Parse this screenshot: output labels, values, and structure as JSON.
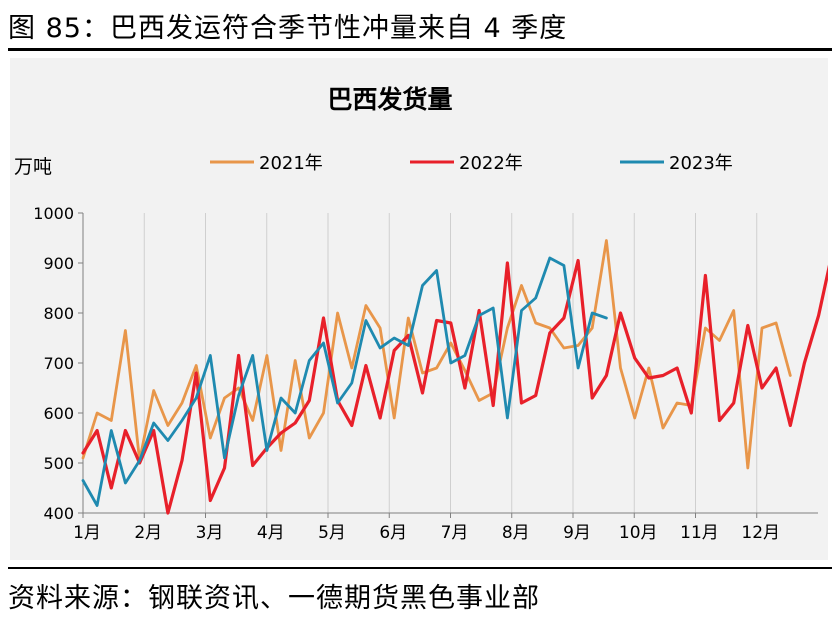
{
  "figure_title": "图 85：巴西发运符合季节性冲量来自 4 季度",
  "source_note": "资料来源：钢联资讯、一德期货黑色事业部",
  "chart_data": {
    "type": "line",
    "title": "巴西发货量",
    "ylabel": "万吨",
    "xlabel": "",
    "ylim": [
      400,
      1000
    ],
    "yticks": [
      400,
      500,
      600,
      700,
      800,
      900,
      1000
    ],
    "x_tick_labels": [
      "1月",
      "2月",
      "3月",
      "4月",
      "5月",
      "6月",
      "7月",
      "8月",
      "9月",
      "10月",
      "11月",
      "12月"
    ],
    "x_unit": "week",
    "grid": "vertical",
    "legend_position": "top",
    "series": [
      {
        "name": "2021年",
        "color": "#e8964a",
        "values": [
          510,
          600,
          585,
          765,
          505,
          645,
          575,
          620,
          695,
          550,
          630,
          650,
          585,
          715,
          525,
          705,
          550,
          600,
          800,
          690,
          815,
          770,
          590,
          790,
          680,
          690,
          740,
          685,
          625,
          640,
          770,
          855,
          780,
          770,
          730,
          735,
          770,
          945,
          690,
          590,
          690,
          570,
          620,
          615,
          770,
          745,
          805,
          490,
          770,
          780,
          675
        ]
      },
      {
        "name": "2022年",
        "color": "#e8202a",
        "values": [
          520,
          565,
          450,
          565,
          500,
          565,
          400,
          505,
          680,
          425,
          490,
          715,
          495,
          530,
          560,
          580,
          625,
          790,
          625,
          575,
          695,
          590,
          725,
          755,
          640,
          785,
          780,
          650,
          805,
          615,
          900,
          620,
          635,
          760,
          790,
          905,
          630,
          675,
          800,
          710,
          670,
          675,
          690,
          600,
          875,
          585,
          620,
          775,
          650,
          690,
          575,
          700,
          795,
          925
        ]
      },
      {
        "name": "2023年",
        "color": "#1f8ab0",
        "values": [
          465,
          415,
          565,
          460,
          505,
          580,
          545,
          585,
          630,
          715,
          510,
          635,
          715,
          525,
          630,
          600,
          705,
          740,
          620,
          660,
          785,
          730,
          750,
          735,
          855,
          885,
          700,
          715,
          795,
          810,
          590,
          805,
          830,
          910,
          895,
          690,
          800,
          790
        ]
      }
    ]
  }
}
